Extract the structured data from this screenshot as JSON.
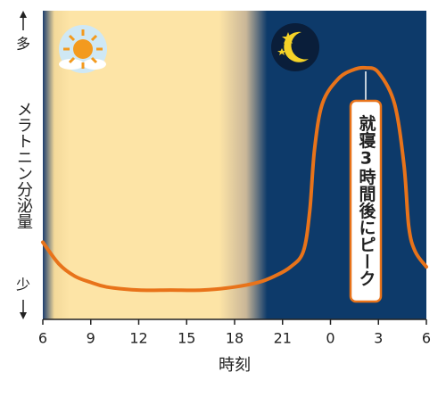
{
  "chart_data": {
    "type": "line",
    "ylabel": "メラトニン分泌量",
    "y_label_top": "多",
    "y_label_bottom": "少",
    "xlabel": "時刻",
    "annotation": "就寝3時間後にピーク",
    "x": [
      6,
      7,
      8,
      9,
      10,
      12,
      14,
      16,
      18,
      19.5,
      20.5,
      21.5,
      22.3,
      22.7,
      23,
      23.5,
      24.5,
      25.5,
      26.2,
      27,
      28,
      28.6,
      28.9,
      29.3,
      30
    ],
    "values": [
      25,
      18,
      14,
      12,
      10.5,
      9.5,
      9.5,
      9.5,
      10.5,
      12,
      14,
      17,
      22,
      35,
      55,
      70,
      78,
      81,
      81.5,
      80,
      70,
      50,
      30,
      22,
      17
    ],
    "color": "#e8731a",
    "xlim": [
      6,
      30
    ],
    "ylim": [
      0,
      100
    ],
    "xticks": [
      6,
      9,
      12,
      15,
      18,
      21,
      {
        "value": 24,
        "label": "0"
      },
      {
        "value": 27,
        "label": "3"
      },
      {
        "value": 30,
        "label": "6"
      }
    ]
  }
}
